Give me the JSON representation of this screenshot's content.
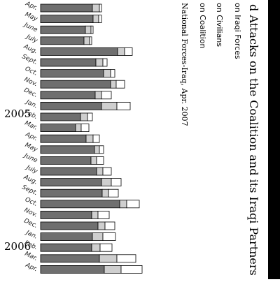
{
  "chart_data": {
    "type": "bar",
    "title": "d Attacks on the Coalition and its Iraqi Partners",
    "source": "National Forces-Iraq, Apr. 2007",
    "legend": [
      "on Iraqi Forces",
      "on Civilians",
      "on Coalition"
    ],
    "series_colors": [
      "#6f6f6f",
      "#cfcfcf",
      "#ffffff"
    ],
    "year_labels": [
      "2005",
      "2006"
    ],
    "categories": [
      "Apr.",
      "May",
      "June",
      "July",
      "Aug.",
      "Sept.",
      "Oct.",
      "Nov.",
      "Dec.",
      "Jan.",
      "Feb.",
      "Mar.",
      "Apr.",
      "May",
      "June",
      "July",
      "Aug.",
      "Sept.",
      "Oct.",
      "Nov.",
      "Dec.",
      "Jan.",
      "Feb.",
      "Mar.",
      "Apr."
    ],
    "series": [
      {
        "values": [
          74,
          75,
          64,
          62,
          110,
          79,
          90,
          100,
          78,
          87,
          57,
          50,
          65,
          77,
          72,
          80,
          87,
          88,
          113,
          73,
          82,
          74,
          73,
          84,
          91
        ]
      },
      {
        "values": [
          10,
          8,
          8,
          8,
          10,
          10,
          10,
          8,
          9,
          22,
          10,
          8,
          10,
          7,
          8,
          9,
          14,
          9,
          10,
          9,
          10,
          15,
          12,
          25,
          24
        ]
      },
      {
        "values": [
          3,
          4,
          3,
          3,
          11,
          6,
          6,
          12,
          14,
          19,
          7,
          11,
          9,
          6,
          10,
          12,
          14,
          14,
          18,
          16,
          14,
          18,
          17,
          27,
          30
        ]
      }
    ]
  }
}
